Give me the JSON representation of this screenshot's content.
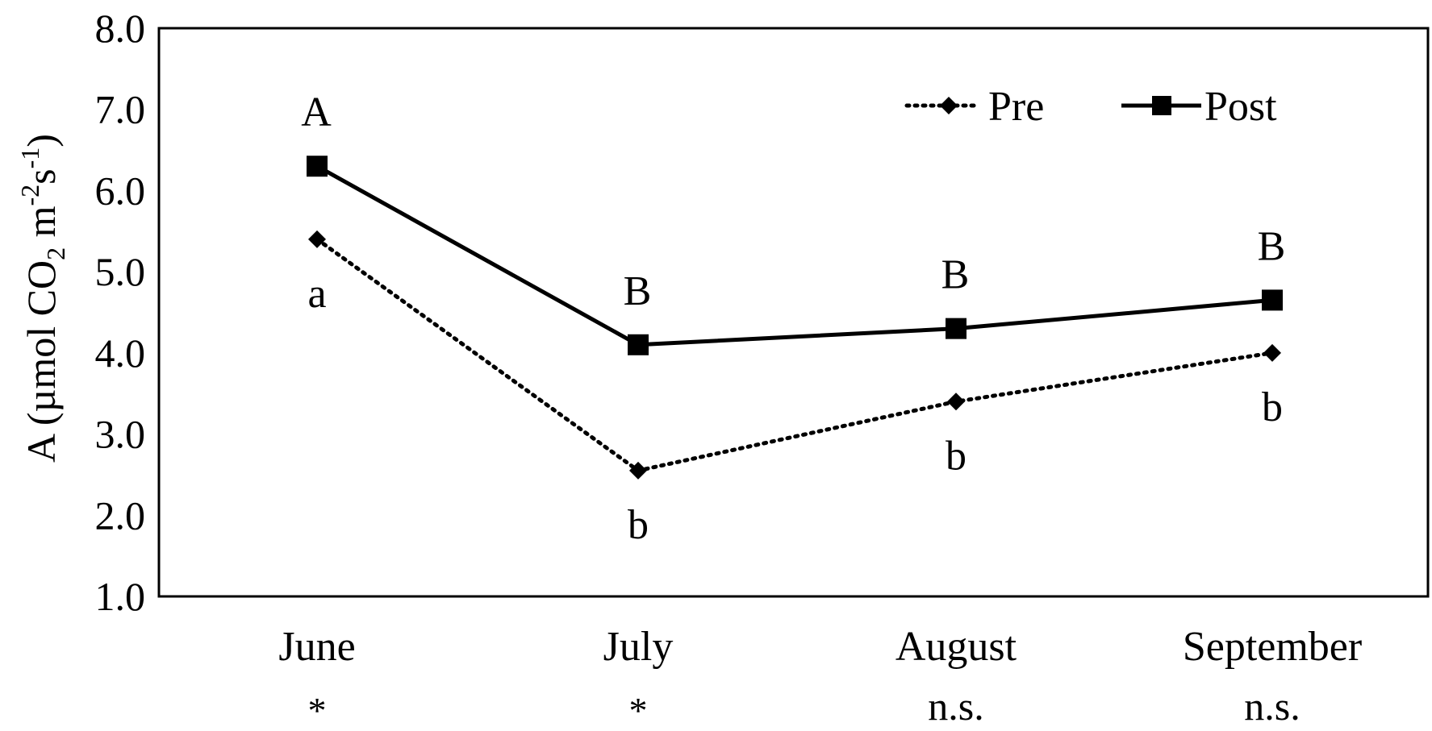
{
  "chart_data": {
    "type": "line",
    "ylabel": "A (µmol CO",
    "ylabel_sub": "2",
    "ylabel_mid": " m",
    "ylabel_sup1": "-2",
    "ylabel_s": "s",
    "ylabel_sup2": "-1",
    "ylabel_close": ")",
    "ylim": [
      1.0,
      8.0
    ],
    "yticks": [
      "1.0",
      "2.0",
      "3.0",
      "4.0",
      "5.0",
      "6.0",
      "7.0",
      "8.0"
    ],
    "categories": [
      "June",
      "July",
      "August",
      "September"
    ],
    "significance": [
      "*",
      "*",
      "n.s.",
      "n.s."
    ],
    "series": [
      {
        "name": "Pre",
        "values": [
          5.4,
          2.55,
          3.4,
          4.0
        ],
        "letters": [
          "a",
          "b",
          "b",
          "b"
        ],
        "style": "dotted",
        "marker": "diamond",
        "color": "#000000"
      },
      {
        "name": "Post",
        "values": [
          6.3,
          4.1,
          4.3,
          4.65
        ],
        "letters": [
          "A",
          "B",
          "B",
          "B"
        ],
        "style": "solid",
        "marker": "square",
        "color": "#000000"
      }
    ],
    "legend_position": "top-right",
    "grid": false
  }
}
